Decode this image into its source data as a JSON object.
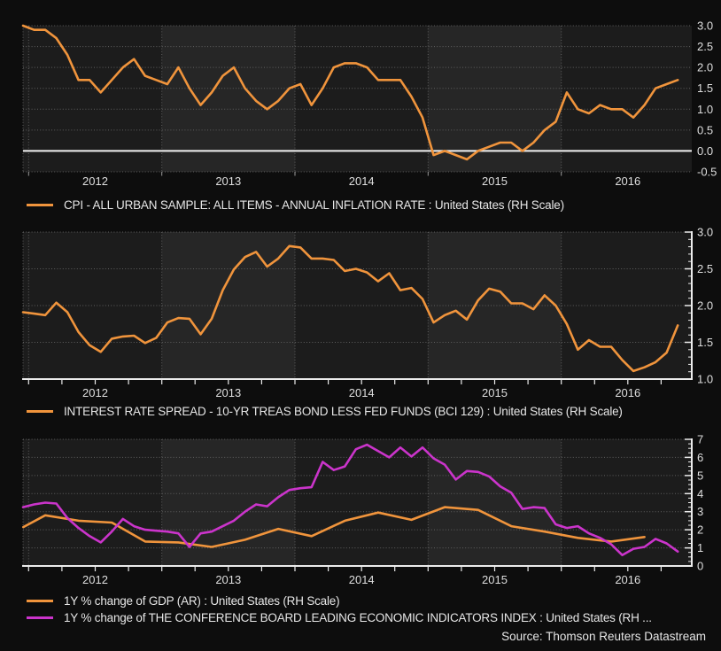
{
  "page": {
    "source_credit": "Source: Thomson Reuters Datastream"
  },
  "colors": {
    "background": "#0d0d0d",
    "plot_dark": "#1c1c1c",
    "plot_light": "#262626",
    "grid": "#5f5f5f",
    "axis": "#ececec",
    "zero_line": "#f2f2f2",
    "text": "#dfdfdf",
    "orange": "#f0943c",
    "magenta": "#cb34cb"
  },
  "chart_data": [
    {
      "type": "line",
      "title": "",
      "grid": true,
      "frame_axes": false,
      "legend_position": "bottom-left",
      "shaded_years": [
        2013,
        2015
      ],
      "x_range": [
        2011.96,
        2016.98
      ],
      "x_axis": {
        "year_labels": [
          "2012",
          "2013",
          "2014",
          "2015",
          "2016"
        ],
        "year_values": [
          2012,
          2013,
          2014,
          2015,
          2016
        ]
      },
      "y_axis": {
        "side": "right",
        "range": [
          -0.5,
          3.0
        ],
        "tick_values": [
          3.0,
          2.5,
          2.0,
          1.5,
          1.0,
          0.5,
          0.0,
          -0.5
        ],
        "tick_labels": [
          "3.0",
          "2.5",
          "2.0",
          "1.5",
          "1.0",
          "0.5",
          "0.0",
          "-0.5"
        ]
      },
      "zero_reference_line": 0,
      "series": [
        {
          "name": "CPI - ALL URBAN SAMPLE: ALL ITEMS - ANNUAL INFLATION RATE : United States (RH Scale)",
          "color_key": "orange",
          "frequency": "monthly",
          "start_decimal_year": 2011.958,
          "values": [
            3.0,
            2.9,
            2.9,
            2.7,
            2.3,
            1.7,
            1.7,
            1.4,
            1.7,
            2.0,
            2.2,
            1.8,
            1.7,
            1.6,
            2.0,
            1.5,
            1.1,
            1.4,
            1.8,
            2.0,
            1.5,
            1.2,
            1.0,
            1.2,
            1.5,
            1.6,
            1.1,
            1.5,
            2.0,
            2.1,
            2.1,
            2.0,
            1.7,
            1.7,
            1.7,
            1.3,
            0.8,
            -0.1,
            0.0,
            -0.1,
            -0.2,
            0.0,
            0.1,
            0.2,
            0.2,
            0.0,
            0.2,
            0.5,
            0.7,
            1.4,
            1.0,
            0.9,
            1.1,
            1.0,
            1.0,
            0.8,
            1.1,
            1.5,
            1.6,
            1.7
          ]
        }
      ]
    },
    {
      "type": "line",
      "title": "",
      "grid": true,
      "frame_axes": true,
      "legend_position": "bottom-left",
      "shaded_years": [
        2013,
        2015
      ],
      "x_range": [
        2011.96,
        2016.98
      ],
      "x_axis": {
        "year_labels": [
          "2012",
          "2013",
          "2014",
          "2015",
          "2016"
        ],
        "year_values": [
          2012,
          2013,
          2014,
          2015,
          2016
        ]
      },
      "y_axis": {
        "side": "right",
        "range": [
          1.0,
          3.0
        ],
        "minor_tick_step": 0.1,
        "tick_values": [
          3.0,
          2.5,
          2.0,
          1.5,
          1.0
        ],
        "tick_labels": [
          "3.0",
          "2.5",
          "2.0",
          "1.5",
          "1.0"
        ]
      },
      "series": [
        {
          "name": "INTEREST RATE SPREAD - 10-YR TREAS BOND LESS FED FUNDS (BCI 129) : United States (RH Scale)",
          "color_key": "orange",
          "frequency": "monthly",
          "start_decimal_year": 2011.958,
          "values": [
            1.91,
            1.89,
            1.87,
            2.04,
            1.91,
            1.64,
            1.46,
            1.37,
            1.55,
            1.58,
            1.59,
            1.49,
            1.56,
            1.77,
            1.83,
            1.82,
            1.61,
            1.82,
            2.21,
            2.49,
            2.66,
            2.73,
            2.53,
            2.64,
            2.81,
            2.79,
            2.64,
            2.64,
            2.62,
            2.47,
            2.5,
            2.45,
            2.33,
            2.44,
            2.21,
            2.24,
            2.09,
            1.77,
            1.87,
            1.93,
            1.81,
            2.07,
            2.23,
            2.19,
            2.03,
            2.03,
            1.95,
            2.14,
            2.0,
            1.75,
            1.4,
            1.53,
            1.44,
            1.44,
            1.26,
            1.11,
            1.16,
            1.23,
            1.36,
            1.73
          ]
        }
      ]
    },
    {
      "type": "line",
      "title": "",
      "grid": true,
      "frame_axes": true,
      "legend_position": "bottom-left",
      "shaded_years": [
        2013,
        2015
      ],
      "x_range": [
        2011.96,
        2016.98
      ],
      "x_axis": {
        "year_labels": [
          "2012",
          "2013",
          "2014",
          "2015",
          "2016"
        ],
        "year_values": [
          2012,
          2013,
          2014,
          2015,
          2016
        ]
      },
      "y_axis": {
        "side": "right",
        "range": [
          0,
          7
        ],
        "minor_tick_step": 0.25,
        "tick_values": [
          7,
          6,
          5,
          4,
          3,
          2,
          1,
          0
        ],
        "tick_labels": [
          "7",
          "6",
          "5",
          "4",
          "3",
          "2",
          "1",
          "0"
        ]
      },
      "series": [
        {
          "name": "1Y % change of GDP (AR) : United States (RH Scale)",
          "color_key": "orange",
          "frequency": "quarterly",
          "x": [
            2011.96,
            2012.125,
            2012.375,
            2012.625,
            2012.875,
            2013.125,
            2013.375,
            2013.625,
            2013.875,
            2014.125,
            2014.375,
            2014.625,
            2014.875,
            2015.125,
            2015.375,
            2015.625,
            2015.875,
            2016.125,
            2016.375,
            2016.625
          ],
          "values": [
            2.15,
            2.8,
            2.5,
            2.4,
            1.35,
            1.3,
            1.05,
            1.45,
            2.05,
            1.65,
            2.5,
            2.95,
            2.55,
            3.25,
            3.1,
            2.2,
            1.9,
            1.55,
            1.35,
            1.6
          ]
        },
        {
          "name": "1Y % change of THE CONFERENCE BOARD LEADING ECONOMIC INDICATORS INDEX : United States (RH ...",
          "color_key": "magenta",
          "frequency": "monthly",
          "start_decimal_year": 2011.958,
          "values": [
            3.25,
            3.4,
            3.5,
            3.45,
            2.65,
            2.1,
            1.65,
            1.3,
            1.9,
            2.6,
            2.2,
            2.0,
            1.95,
            1.9,
            1.8,
            1.05,
            1.8,
            1.9,
            2.2,
            2.5,
            3.0,
            3.4,
            3.3,
            3.8,
            4.2,
            4.3,
            4.35,
            5.75,
            5.3,
            5.5,
            6.45,
            6.7,
            6.35,
            6.0,
            6.55,
            6.05,
            6.55,
            5.95,
            5.6,
            4.78,
            5.25,
            5.2,
            4.95,
            4.4,
            4.05,
            3.15,
            3.25,
            3.2,
            2.3,
            2.1,
            2.2,
            1.8,
            1.55,
            1.2,
            0.6,
            0.95,
            1.05,
            1.5,
            1.25,
            0.8
          ]
        }
      ]
    }
  ]
}
